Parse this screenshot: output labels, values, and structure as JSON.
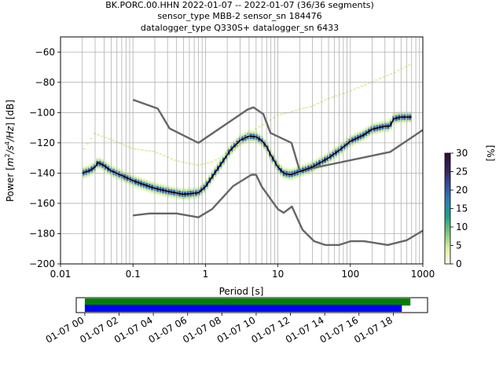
{
  "title_lines": [
    "BK.PORC.00.HHN   2022-01-07 -- 2022-01-07  (36/36 segments)",
    "sensor_type MBB-2 sensor_sn 184476",
    "datalogger_type Q330S+ datalogger_sn 6433"
  ],
  "colorbar": {
    "label": "[%]",
    "ticks": [
      "0",
      "5",
      "10",
      "15",
      "20",
      "25",
      "30"
    ],
    "range": [
      0,
      30
    ],
    "colors": [
      "#ffffe5",
      "#d9f0a3",
      "#78c679",
      "#1fa187",
      "#2c7fb8",
      "#354e9e",
      "#3b1f5c",
      "#2d0d3f"
    ]
  },
  "chart_data": [
    {
      "type": "line",
      "title": "BK.PORC.00.HHN   2022-01-07 -- 2022-01-07  (36/36 segments)",
      "xlabel": "Period [s]",
      "ylabel": "Power [m²/s⁴/Hz] [dB]",
      "ylabel_parts": {
        "base": "Power [",
        "m": "m",
        "sup2": "2",
        "s": "/s",
        "sup4": "4",
        "hz": "/Hz",
        "end": "] [dB]"
      },
      "x_scale": "log",
      "xlim": [
        0.01,
        1000
      ],
      "ylim": [
        -200,
        -50
      ],
      "x_ticks": [
        0.01,
        0.1,
        1,
        10,
        100,
        1000
      ],
      "x_tick_labels": [
        "0.01",
        "0.1",
        "1",
        "10",
        "100",
        "1000"
      ],
      "y_ticks": [
        -200,
        -180,
        -160,
        -140,
        -120,
        -100,
        -80,
        -60
      ],
      "y_tick_labels": [
        "−200",
        "−180",
        "−160",
        "−140",
        "−120",
        "−100",
        "−80",
        "−60"
      ],
      "grid": true,
      "series": [
        {
          "role": "high-noise-model",
          "color": "#666666",
          "x": [
            0.1,
            0.22,
            0.32,
            0.8,
            3.8,
            4.6,
            6.3,
            7.9,
            15.4,
            20,
            354.8,
            1000
          ],
          "y": [
            -91.5,
            -97.4,
            -110.5,
            -120,
            -98,
            -96.5,
            -101,
            -113.5,
            -120,
            -138.5,
            -126,
            -111.5
          ]
        },
        {
          "role": "low-noise-model",
          "color": "#666666",
          "x": [
            0.1,
            0.17,
            0.4,
            0.8,
            1.24,
            2.4,
            4.3,
            5,
            6,
            10,
            12,
            15.6,
            21.9,
            31.6,
            45,
            70,
            101,
            154,
            328,
            600,
            1000
          ],
          "y": [
            -168,
            -166.7,
            -166.7,
            -169.2,
            -163.7,
            -148.6,
            -141.1,
            -141.1,
            -149,
            -163.8,
            -166.2,
            -162.1,
            -177.5,
            -185,
            -187.5,
            -187.5,
            -185,
            -185,
            -187.5,
            -184.4,
            -178
          ]
        },
        {
          "role": "mode",
          "color": "#000000",
          "x": [
            0.02,
            0.025,
            0.03,
            0.033,
            0.04,
            0.05,
            0.07,
            0.1,
            0.15,
            0.2,
            0.3,
            0.5,
            0.8,
            1.0,
            1.3,
            1.7,
            2.2,
            3,
            4,
            5,
            6,
            7,
            8,
            10,
            12,
            15,
            20,
            30,
            50,
            70,
            100,
            150,
            200,
            300,
            350,
            400,
            500,
            700
          ],
          "y": [
            -140,
            -138.5,
            -136,
            -133,
            -135,
            -138.5,
            -141.5,
            -145,
            -148,
            -150,
            -152,
            -154,
            -153,
            -149,
            -141,
            -133,
            -125,
            -118.5,
            -115.5,
            -116,
            -118.5,
            -122.5,
            -128,
            -136,
            -140,
            -141,
            -139,
            -136,
            -130,
            -125,
            -119,
            -115,
            -111,
            -109,
            -109,
            -104,
            -103,
            -103
          ]
        },
        {
          "role": "upper-sparse-probability",
          "color": "#d9f0a3",
          "x": [
            0.02,
            0.03,
            0.05,
            0.1,
            0.2,
            0.4,
            0.8,
            1.2,
            2,
            3,
            5,
            7,
            10,
            15,
            20,
            30,
            50,
            100,
            200,
            400,
            700
          ],
          "y": [
            -126,
            -114,
            -118,
            -124,
            -126,
            -132,
            -135,
            -133,
            -128,
            -120,
            -111,
            -107,
            -102,
            -100,
            -98,
            -96,
            -91,
            -86,
            -80,
            -74,
            -68
          ]
        }
      ]
    },
    {
      "type": "timeline",
      "x_tick_labels": [
        "01-07 00",
        "01-07 02",
        "01-07 04",
        "01-07 06",
        "01-07 08",
        "01-07 10",
        "01-07 12",
        "01-07 14",
        "01-07 16",
        "01-07 18"
      ],
      "x_range_hours": [
        -0.5,
        20.0
      ],
      "bars": [
        {
          "role": "data-coverage",
          "color": "#008000",
          "start_hour": 0.0,
          "end_hour": 19.0
        },
        {
          "role": "psd-segments",
          "color": "#0000ff",
          "start_hour": 0.0,
          "end_hour": 18.5
        }
      ]
    }
  ]
}
